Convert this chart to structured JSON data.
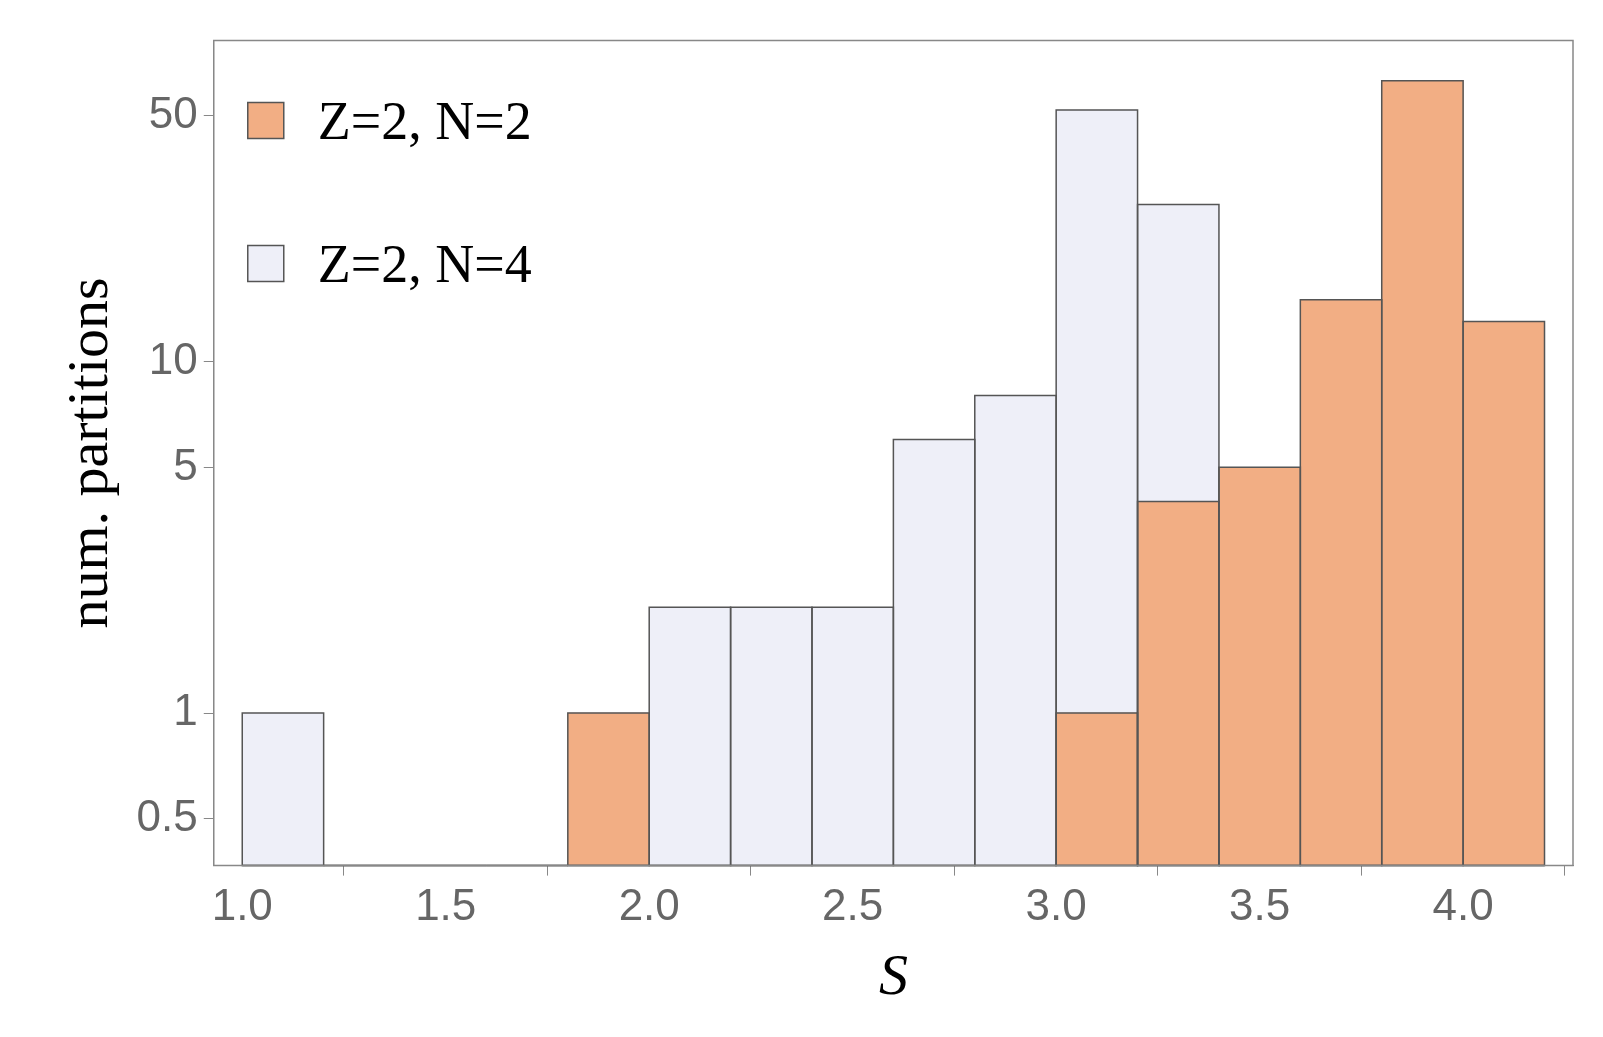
{
  "chart_data": {
    "type": "histogram",
    "xlabel": "S",
    "ylabel": "num. partitions",
    "bins": [
      1.0,
      1.2,
      1.4,
      1.6,
      1.8,
      2.0,
      2.2,
      2.4,
      2.6,
      2.8,
      3.0,
      3.2,
      3.4,
      3.6,
      3.8,
      4.0,
      4.2
    ],
    "series": [
      {
        "name": "Z=2, N=2",
        "color": "#f2ae84",
        "values": [
          null,
          null,
          null,
          null,
          1,
          null,
          null,
          null,
          null,
          null,
          1,
          4,
          5,
          15,
          63,
          13
        ]
      },
      {
        "name": "Z=2, N=4",
        "color": "#eeeff8",
        "values": [
          1,
          null,
          null,
          null,
          null,
          2,
          2,
          2,
          6,
          8,
          52,
          28,
          null,
          null,
          null,
          null
        ]
      }
    ],
    "log": "y",
    "xlim": [
      0.93,
      4.27
    ],
    "ylim": [
      0.368,
      82
    ],
    "xticks": [
      {
        "value": 1,
        "label": "1.0"
      },
      {
        "value": 1.5,
        "label": "1.5"
      },
      {
        "value": 2,
        "label": "2.0"
      },
      {
        "value": 2.5,
        "label": "2.5"
      },
      {
        "value": 3,
        "label": "3.0"
      },
      {
        "value": 3.5,
        "label": "3.5"
      },
      {
        "value": 4,
        "label": "4.0"
      }
    ],
    "yticks": [
      0.5,
      1,
      5,
      10,
      50
    ],
    "legend": "top left",
    "grid": false
  }
}
